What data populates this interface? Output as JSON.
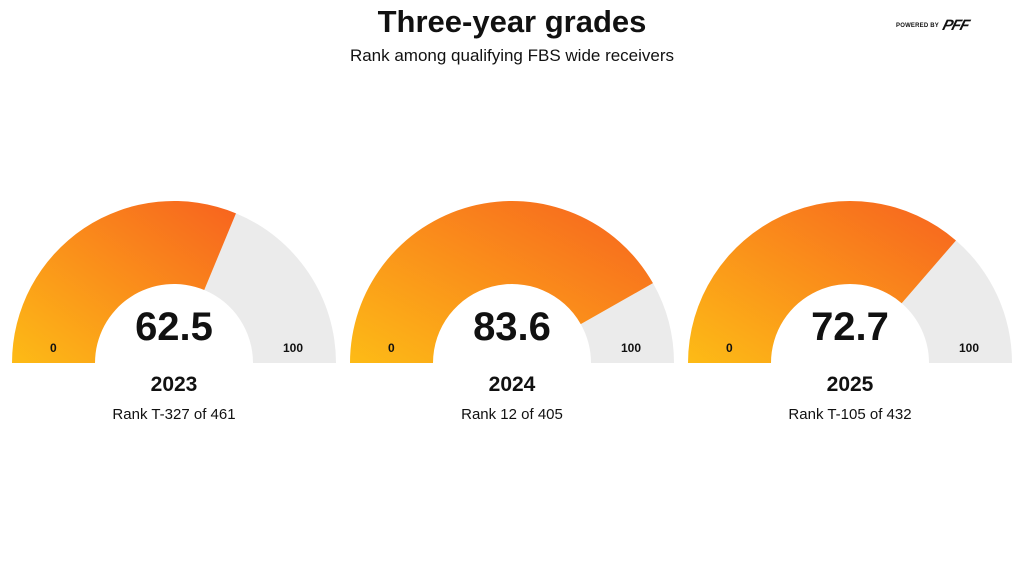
{
  "chart_data": {
    "type": "gauge",
    "title": "Three-year grades",
    "subtitle": "Rank among qualifying FBS wide receivers",
    "range": [
      0,
      100
    ],
    "min_label": "0",
    "max_label": "100",
    "colors": {
      "fill_start": "#fdbb16",
      "fill_end": "#f7621f",
      "track": "#ebebeb"
    },
    "gauges": [
      {
        "year": "2023",
        "value": 62.5,
        "value_label": "62.5",
        "rank": "Rank T-327 of 461"
      },
      {
        "year": "2024",
        "value": 83.6,
        "value_label": "83.6",
        "rank": "Rank 12 of 405"
      },
      {
        "year": "2025",
        "value": 72.7,
        "value_label": "72.7",
        "rank": "Rank T-105 of 432"
      }
    ]
  },
  "logo": {
    "powered_by": "POWERED BY",
    "brand": "PFF"
  }
}
